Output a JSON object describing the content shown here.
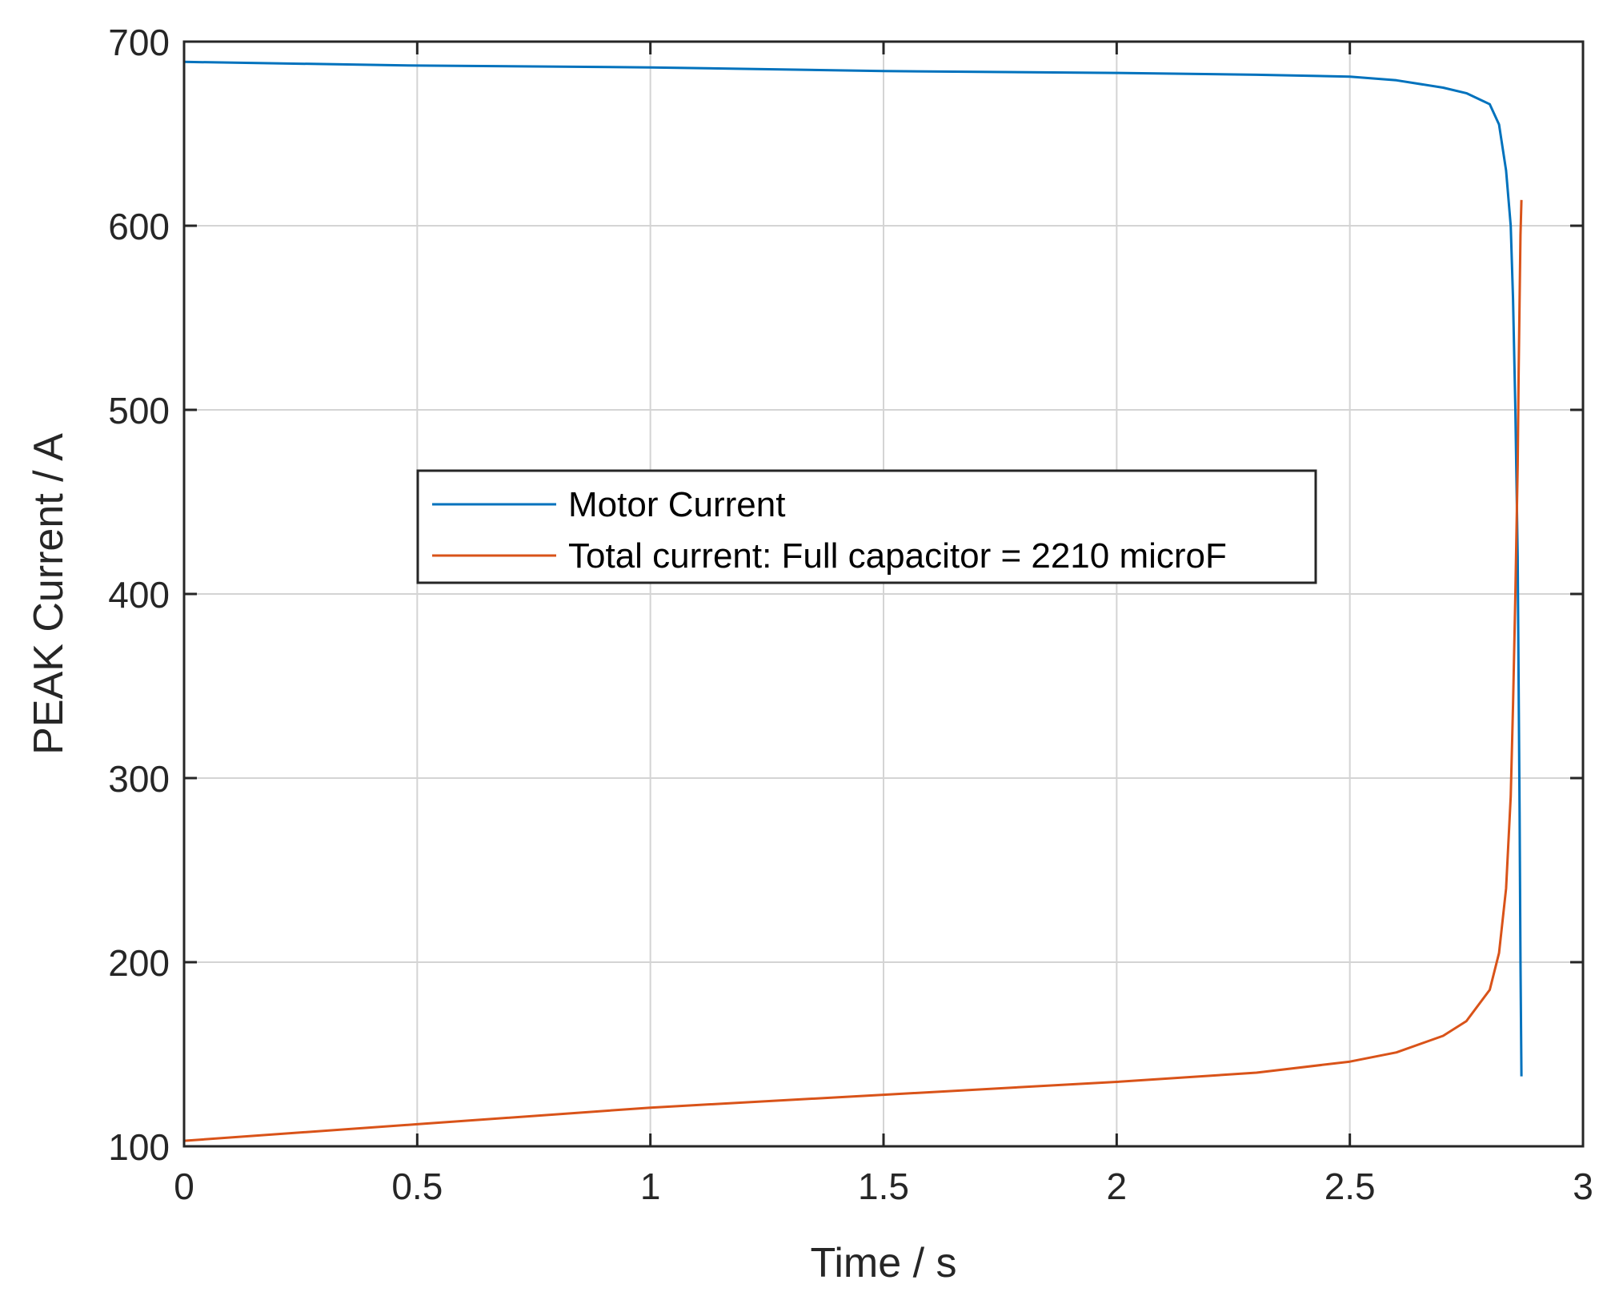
{
  "chart_data": {
    "type": "line",
    "title": "",
    "xlabel": "Time / s",
    "ylabel": "PEAK Current / A",
    "xlim": [
      0,
      3
    ],
    "ylim": [
      100,
      700
    ],
    "xticks": [
      0,
      0.5,
      1,
      1.5,
      2,
      2.5,
      3
    ],
    "xtick_labels": [
      "0",
      "0.5",
      "1",
      "1.5",
      "2",
      "2.5",
      "3"
    ],
    "yticks": [
      100,
      200,
      300,
      400,
      500,
      600,
      700
    ],
    "ytick_labels": [
      "100",
      "200",
      "300",
      "400",
      "500",
      "600",
      "700"
    ],
    "grid": true,
    "legend_position": "center-left",
    "series": [
      {
        "name": "Motor Current",
        "color": "#0072BD",
        "x": [
          0,
          0.5,
          1,
          1.5,
          2,
          2.3,
          2.5,
          2.6,
          2.7,
          2.75,
          2.8,
          2.82,
          2.835,
          2.845,
          2.85,
          2.855,
          2.86,
          2.862,
          2.864,
          2.866,
          2.868
        ],
        "y": [
          689,
          687,
          686,
          684,
          683,
          682,
          681,
          679,
          675,
          672,
          666,
          655,
          630,
          600,
          560,
          500,
          420,
          350,
          280,
          200,
          138
        ]
      },
      {
        "name": "Total current: Full capacitor = 2210 microF",
        "color": "#D95319",
        "x": [
          0,
          0.5,
          1,
          1.5,
          2,
          2.3,
          2.5,
          2.6,
          2.7,
          2.75,
          2.8,
          2.82,
          2.835,
          2.845,
          2.85,
          2.855,
          2.86,
          2.862,
          2.864,
          2.866,
          2.868
        ],
        "y": [
          103,
          112,
          121,
          128,
          135,
          140,
          146,
          151,
          160,
          168,
          185,
          205,
          240,
          290,
          340,
          400,
          470,
          520,
          560,
          595,
          614
        ]
      }
    ]
  }
}
